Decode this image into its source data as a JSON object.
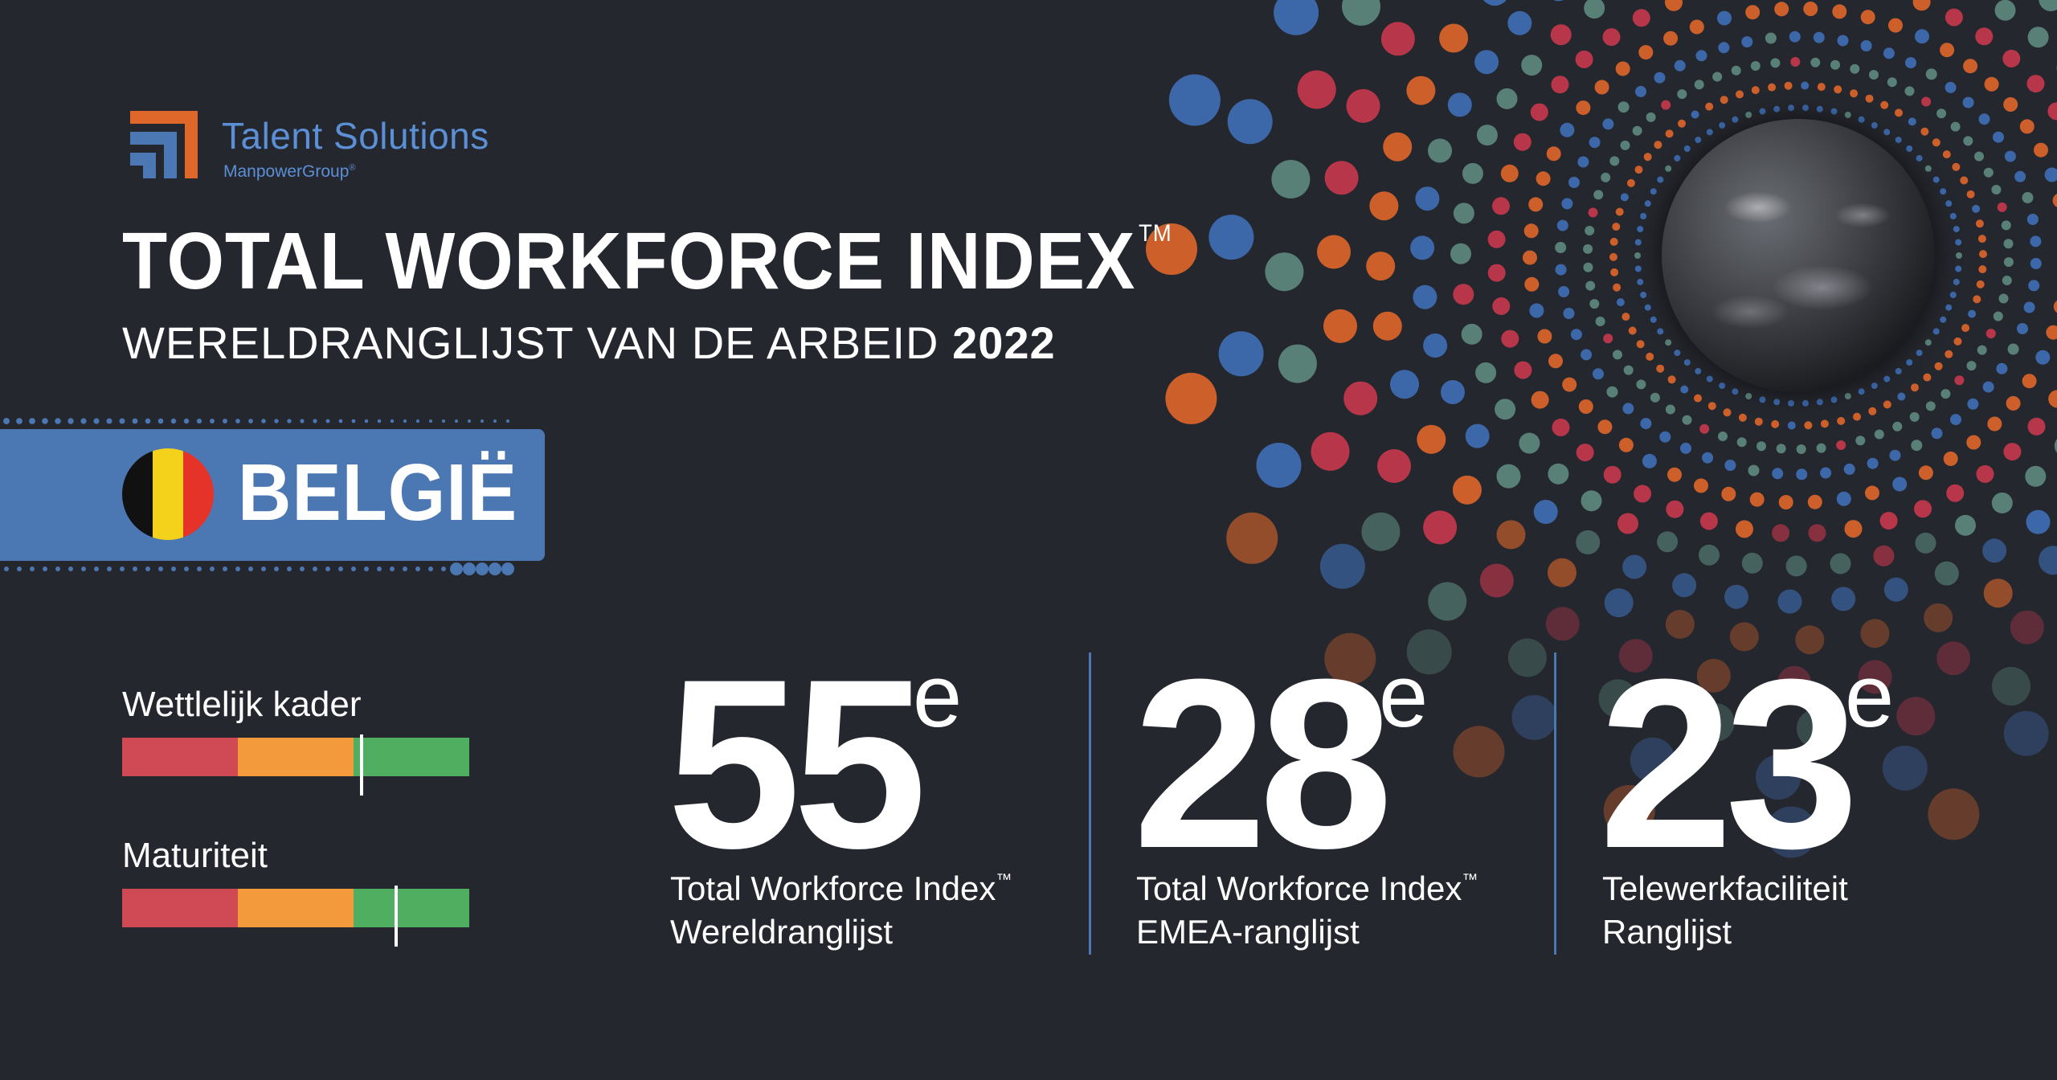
{
  "brand": {
    "name": "Talent Solutions",
    "parent": "ManpowerGroup",
    "parent_mark": "®",
    "colors": {
      "orange": "#e0672a",
      "blue": "#4b77b3",
      "light_blue": "#5b8fd6"
    }
  },
  "header": {
    "title": "TOTAL WORKFORCE INDEX",
    "title_mark": "TM",
    "subtitle": "WERELDRANGLIJST VAN DE ARBEID",
    "year": "2022"
  },
  "country": {
    "name": "BELGIË",
    "flag_colors": [
      "#111111",
      "#f4d21c",
      "#e6332a"
    ]
  },
  "scales": [
    {
      "label": "Wettlelijk kader",
      "level": 0.69
    },
    {
      "label": "Maturiteit",
      "level": 0.79
    }
  ],
  "scale_colors": [
    "#d04a55",
    "#f29a3c",
    "#4fae5f"
  ],
  "rankings": [
    {
      "value": "55",
      "suffix": "e",
      "line1": "Total Workforce Index",
      "line1_mark": "™",
      "line2": "Wereldranglijst"
    },
    {
      "value": "28",
      "suffix": "e",
      "line1": "Total Workforce Index",
      "line1_mark": "™",
      "line2": "EMEA-ranglijst"
    },
    {
      "value": "23",
      "suffix": "e",
      "line1": "Telewerkfaciliteit",
      "line1_mark": "",
      "line2": "Ranglijst"
    }
  ],
  "decor_colors": [
    "#e0672a",
    "#3f6fb6",
    "#5e8b7e",
    "#c9384c"
  ]
}
